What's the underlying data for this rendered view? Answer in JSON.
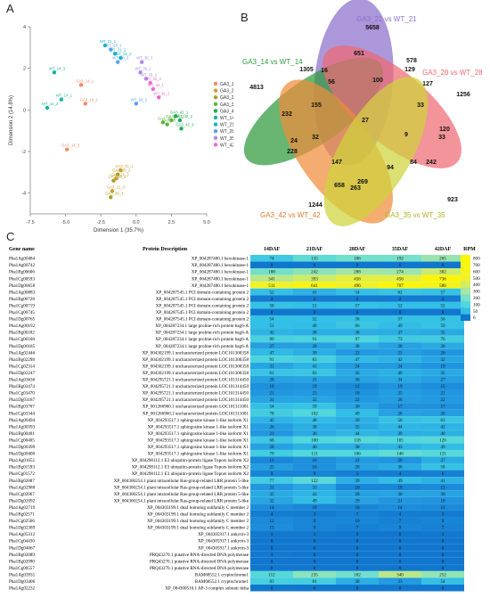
{
  "panels": {
    "a": "A",
    "b": "B",
    "c": "C"
  },
  "chart_data": [
    {
      "type": "scatter",
      "xlabel": "Dimension 1 (35.7%)",
      "ylabel": "Dimension 2 (14.8%)",
      "xlim": [
        -7.5,
        5.0
      ],
      "ylim": [
        -5,
        4
      ],
      "xticks": [
        "-7.5",
        "-5.0",
        "-2.5",
        "0.0",
        "2.5",
        "5.0"
      ],
      "yticks": [
        "4",
        "2",
        "0",
        "-2",
        "-4"
      ],
      "grid": false,
      "legend_position": "right",
      "series": [
        {
          "name": "GA3_14",
          "color": "#f08a6a",
          "points": [
            {
              "label": "GA3_14_1",
              "x": -3.9,
              "y": 1.2
            },
            {
              "label": "GA3_14_2",
              "x": -3.6,
              "y": 0.3
            },
            {
              "label": "GA3_14_3",
              "x": -4.9,
              "y": -1.9
            }
          ]
        },
        {
          "name": "GA3_21",
          "color": "#d49a2a",
          "points": [
            {
              "label": "GA3_21_1",
              "x": -1.1,
              "y": -2.9
            },
            {
              "label": "GA3_21_2",
              "x": -1.4,
              "y": -3.3
            },
            {
              "label": "GA3_21_3",
              "x": -1.7,
              "y": -3.9
            }
          ]
        },
        {
          "name": "GA3_28",
          "color": "#a6a126",
          "points": [
            {
              "label": "GA3_28_1",
              "x": -1.3,
              "y": -3.1
            },
            {
              "label": "GA3_28_2",
              "x": -1.6,
              "y": -3.4
            },
            {
              "label": "GA3_28_3",
              "x": -1.8,
              "y": -4.2
            }
          ]
        },
        {
          "name": "GA3_35",
          "color": "#5eb43a",
          "points": [
            {
              "label": "GA3_35_1",
              "x": 1.9,
              "y": -0.6
            },
            {
              "label": "GA3_35_2",
              "x": 2.2,
              "y": -0.7
            },
            {
              "label": "GA3_35_3",
              "x": 2.5,
              "y": -0.5
            }
          ]
        },
        {
          "name": "GA3_42",
          "color": "#1eaa5a",
          "points": [
            {
              "label": "GA3_42_1",
              "x": 2.8,
              "y": -0.3
            },
            {
              "label": "GA3_42_2",
              "x": 3.1,
              "y": -0.5
            },
            {
              "label": "GA3_42_3",
              "x": 3.2,
              "y": -0.9
            }
          ]
        },
        {
          "name": "WT_14",
          "color": "#16b3a0",
          "points": [
            {
              "label": "WT_14_1",
              "x": -5.3,
              "y": 0.5
            },
            {
              "label": "WT_14_2",
              "x": -6.3,
              "y": 0.1
            },
            {
              "label": "WT_14_3",
              "x": -5.8,
              "y": 1.8
            }
          ]
        },
        {
          "name": "WT_21",
          "color": "#16b0cc",
          "points": [
            {
              "label": "WT_21_1",
              "x": -2.2,
              "y": 3.1
            },
            {
              "label": "WT_21_2",
              "x": -1.5,
              "y": 2.7
            },
            {
              "label": "WT_21_3",
              "x": -1.1,
              "y": 2.5
            }
          ]
        },
        {
          "name": "WT_28",
          "color": "#5aa2ec",
          "points": [
            {
              "label": "WT_28_1",
              "x": -1.8,
              "y": 2.9
            },
            {
              "label": "WT_28_2",
              "x": -1.3,
              "y": 2.3
            },
            {
              "label": "WT_28_3",
              "x": 0.0,
              "y": 0.3
            }
          ]
        },
        {
          "name": "WT_35",
          "color": "#a98ae8",
          "points": [
            {
              "label": "WT_35_1",
              "x": 0.3,
              "y": 1.8
            },
            {
              "label": "WT_35_2",
              "x": 0.7,
              "y": 1.5
            },
            {
              "label": "WT_35_3",
              "x": 0.4,
              "y": 2.3
            }
          ]
        },
        {
          "name": "WT_42",
          "color": "#ee6ad0",
          "points": [
            {
              "label": "WT_42_1",
              "x": 1.2,
              "y": 1.0
            },
            {
              "label": "WT_42_2",
              "x": 1.6,
              "y": 0.6
            },
            {
              "label": "WT_42_3",
              "x": 1.0,
              "y": 1.3
            }
          ]
        }
      ]
    },
    {
      "type": "venn",
      "sets": [
        {
          "name": "GA3_21 vs WT_21",
          "color": "#8b6fcc",
          "unique": "5658"
        },
        {
          "name": "GA3_28 vs WT_28",
          "color": "#ee6a73",
          "unique": "1256"
        },
        {
          "name": "GA3_35 vs WT_35",
          "color": "#cfd23a",
          "unique": "923"
        },
        {
          "name": "GA3_42 vs WT_42",
          "color": "#f08c3a",
          "unique": "1244"
        },
        {
          "name": "GA3_14 vs WT_14",
          "color": "#2e9a3c",
          "unique": "4813"
        }
      ],
      "intersections": [
        "651",
        "578",
        "129",
        "100",
        "127",
        "1305",
        "56",
        "16",
        "33",
        "232",
        "155",
        "27",
        "9",
        "120",
        "33",
        "32",
        "84",
        "242",
        "24",
        "228",
        "147",
        "94",
        "658",
        "269",
        "263"
      ]
    },
    {
      "type": "heatmap",
      "columns": [
        "14DAF",
        "21DAF",
        "28DAF",
        "35DAF",
        "42DAF"
      ],
      "headers": {
        "gene": "Gene name",
        "desc": "Protein Description"
      },
      "legend": {
        "title": "RPM",
        "ticks": [
          "800",
          "700",
          "600",
          "500",
          "400",
          "300",
          "200",
          "100",
          "50",
          "0"
        ]
      },
      "rows": [
        {
          "gene": "Pha1Ag00484",
          "desc": "XP_004287480.1 hexokinase-1",
          "values": [
            74,
            135,
            186,
            192,
            265
          ]
        },
        {
          "gene": "Pha1Ag00742",
          "desc": "XP_004287480.1 hexokinase-1",
          "values": [
            0,
            0,
            0,
            0,
            0
          ]
        },
        {
          "gene": "Pha1Bg00606",
          "desc": "XP_004287480.1 hexokinase-1",
          "values": [
            188,
            242,
            288,
            274,
            382
          ]
        },
        {
          "gene": "Pha1Cg00593",
          "desc": "XP_004287480.1 hexokinase-1",
          "values": [
            341,
            393,
            456,
            456,
            736
          ]
        },
        {
          "gene": "Pha1Dg00658",
          "desc": "XP_004287480.1 hexokinase-1",
          "values": [
            511,
            641,
            496,
            707,
            586
          ]
        },
        {
          "gene": "Pha1Ag00883",
          "desc": "XP_004287545.1 PCI domain-containing protein 2",
          "values": [
            52,
            41,
            54,
            62,
            57
          ]
        },
        {
          "gene": "Pha1Bg00728",
          "desc": "XP_004287545.1 PCI domain-containing protein 2",
          "values": [
            2,
            2,
            2,
            2,
            2
          ]
        },
        {
          "gene": "Pha1Cg00719",
          "desc": "XP_004287545.1 PCI domain-containing protein 2",
          "values": [
            58,
            51,
            57,
            52,
            52
          ]
        },
        {
          "gene": "Pha1Cg00745",
          "desc": "XP_004287545.1 PCI domain-containing protein 2",
          "values": [
            0,
            0,
            0,
            0,
            0
          ]
        },
        {
          "gene": "Pha1Dg00765",
          "desc": "XP_004287545.1 PCI domain-containing protein 2",
          "values": [
            54,
            52,
            58,
            57,
            56
          ]
        },
        {
          "gene": "Pha1Ag00192",
          "desc": "XP_004287234.1 large proline-rich protein bag6-A",
          "values": [
            51,
            49,
            66,
            49,
            59
          ]
        },
        {
          "gene": "Pha1Bg00182",
          "desc": "XP_004287234.1 large proline-rich protein bag6-A",
          "values": [
            42,
            38,
            38,
            37,
            35
          ]
        },
        {
          "gene": "Pha1Cg00168",
          "desc": "XP_004287234.1 large proline-rich protein bag6-A",
          "values": [
            89,
            91,
            97,
            73,
            76
          ]
        },
        {
          "gene": "Pha1Dg00185",
          "desc": "XP_004287234.1 large proline-rich protein bag6-A",
          "values": [
            27,
            29,
            38,
            28,
            36
          ]
        },
        {
          "gene": "Pha1Ag02446",
          "desc": "XP_004302199.1 uncharacterized protein LOC101300358",
          "values": [
            47,
            39,
            22,
            25,
            20
          ]
        },
        {
          "gene": "Pha1Bg02298",
          "desc": "XP_004302199.1 uncharacterized protein LOC101300358",
          "values": [
            91,
            83,
            47,
            42,
            32
          ]
        },
        {
          "gene": "Pha1Cg02314",
          "desc": "XP_004302199.1 uncharacterized protein LOC101300358",
          "values": [
            31,
            41,
            24,
            24,
            19
          ]
        },
        {
          "gene": "Pha1Dg02247",
          "desc": "XP_004302199.1 uncharacterized protein LOC101300358",
          "values": [
            61,
            63,
            35,
            40,
            35
          ]
        },
        {
          "gene": "Pha1Ag03636",
          "desc": "XP_004295721.1 uncharacterized protein LOC101314450",
          "values": [
            28,
            31,
            30,
            34,
            27
          ]
        },
        {
          "gene": "Pha1Bg03474",
          "desc": "XP_004295721.1 uncharacterized protein LOC101314450",
          "values": [
            16,
            19,
            12,
            19,
            15
          ]
        },
        {
          "gene": "Pha1Cg03470",
          "desc": "XP_004295721.1 uncharacterized protein LOC101314450",
          "values": [
            21,
            23,
            18,
            25,
            21
          ]
        },
        {
          "gene": "Pha1Dg03187",
          "desc": "XP_004295721.1 uncharacterized protein LOC101314450",
          "values": [
            31,
            32,
            22,
            26,
            22
          ]
        },
        {
          "gene": "Pha1Bg03707",
          "desc": "XP_001266960.1 uncharacterized protein LOC101311001",
          "values": [
            54,
            59,
            30,
            17,
            17
          ]
        },
        {
          "gene": "Pha1Cg03344",
          "desc": "XP_001266960.1 uncharacterized protein LOC101311001",
          "values": [
            78,
            102,
            49,
            28,
            26
          ]
        },
        {
          "gene": "Pha1Ag00494",
          "desc": "XP_004293517.1 sphingosine kinase 1-like isoform X1",
          "values": [
            42,
            48,
            39,
            56,
            63
          ]
        },
        {
          "gene": "Pha1Ag00393",
          "desc": "XP_004293517.1 sphingosine kinase 1-like isoform X1",
          "values": [
            26,
            38,
            35,
            44,
            42
          ]
        },
        {
          "gene": "Pha1Bg00401",
          "desc": "XP_004293517.1 sphingosine kinase 1-like isoform X1",
          "values": [
            21,
            36,
            44,
            39,
            40
          ]
        },
        {
          "gene": "Pha1Cg00405",
          "desc": "XP_004293517.1 sphingosine kinase 1-like isoform X1",
          "values": [
            68,
            100,
            118,
            105,
            120
          ]
        },
        {
          "gene": "Pha1Dg00399",
          "desc": "XP_004293517.1 sphingosine kinase 1-like isoform X1",
          "values": [
            28,
            40,
            38,
            43,
            49
          ]
        },
        {
          "gene": "Pha1Dg00400",
          "desc": "XP_004293517.1 sphingosine kinase 1-like isoform X1",
          "values": [
            79,
            111,
            106,
            146,
            121
          ]
        },
        {
          "gene": "Pha1Ag01651",
          "desc": "XP_004298112.1 E3 ubiquitin-protein ligase Topors isoform X2",
          "values": [
            11,
            16,
            22,
            20,
            37
          ]
        },
        {
          "gene": "Pha1Bg01593",
          "desc": "XP_004298112.1 E3 ubiquitin-protein ligase Topors isoform X2",
          "values": [
            25,
            16,
            28,
            36,
            58
          ]
        },
        {
          "gene": "Pha1Cg01572",
          "desc": "XP_004298112.1 E3 ubiquitin-protein ligase Topors isoform X2",
          "values": [
            9,
            9,
            5,
            4,
            6
          ]
        },
        {
          "gene": "Pha1Bg02887",
          "desc": "XP_004300254.1 plant intracellular Ras-group-related LRR protein 5-like",
          "values": [
            77,
            122,
            39,
            49,
            41
          ]
        },
        {
          "gene": "Pha1Ag02988",
          "desc": "XP_004300254.1 plant intracellular Ras-group-related LRR protein 5-like",
          "values": [
            21,
            33,
            10,
            10,
            13
          ]
        },
        {
          "gene": "Pha1Cg02067",
          "desc": "XP_004300254.1 plant intracellular Ras-group-related LRR protein 5-like",
          "values": [
            35,
            43,
            28,
            30,
            30
          ]
        },
        {
          "gene": "Pha1Dg02092",
          "desc": "XP_004300254.1 plant intracellular Ras-group-related LRR protein 5-like",
          "values": [
            32,
            49,
            29,
            21,
            19
          ]
        },
        {
          "gene": "Pha1Ag02719",
          "desc": "XP_004303199.1 dnaJ homolog subfamily C member 2",
          "values": [
            14,
            10,
            10,
            14,
            12
          ]
        },
        {
          "gene": "Pha1Bg02571",
          "desc": "XP_004303199.1 dnaJ homolog subfamily C member 2",
          "values": [
            4,
            3,
            7,
            4,
            3
          ]
        },
        {
          "gene": "Pha1Cg02566",
          "desc": "XP_004303199.1 dnaJ homolog subfamily C member 2",
          "values": [
            12,
            9,
            10,
            7,
            9
          ]
        },
        {
          "gene": "Pha1Dg02389",
          "desc": "XP_004303199.1 dnaJ homolog subfamily C member 2",
          "values": [
            15,
            9,
            7,
            9,
            7
          ]
        },
        {
          "gene": "Pha1Ag05312",
          "desc": "XP_004305917.1 ankyrin-3",
          "values": [
            1,
            1,
            0,
            0,
            1
          ]
        },
        {
          "gene": "Pha1Cg04430",
          "desc": "XP_004305917.1 ankyrin-3",
          "values": [
            0,
            0,
            0,
            0,
            0
          ]
        },
        {
          "gene": "Pha1Dg04667",
          "desc": "XP_004305917.1 ankyrin-3",
          "values": [
            0,
            0,
            0,
            0,
            0
          ]
        },
        {
          "gene": "Pha1Bg02089",
          "desc": "PRQ43270.1 putative RNA-directed DNA polymerase",
          "values": [
            1,
            0,
            0,
            0,
            0
          ]
        },
        {
          "gene": "Pha1Bg02090",
          "desc": "PRQ43270.1 putative RNA-directed DNA polymerase",
          "values": [
            0,
            0,
            0,
            0,
            0
          ]
        },
        {
          "gene": "Pha1Cg00557",
          "desc": "PRQ43270.1 putative RNA-directed DNA polymerase",
          "values": [
            0,
            0,
            0,
            0,
            0
          ]
        },
        {
          "gene": "Pha1Ag03931",
          "desc": "BAM68552.1 cryptochrome1",
          "values": [
            112,
            235,
            182,
            340,
            252
          ]
        },
        {
          "gene": "Pha1Dg03406",
          "desc": "BAM68552.1 cryptochrome1",
          "values": [
            83,
            81,
            38,
            23,
            54
          ]
        },
        {
          "gene": "Pha1Ag02232",
          "desc": "XP_004300510.1 AP-3 complex subunit delta",
          "values": [
            0,
            0,
            0,
            0,
            0
          ]
        }
      ]
    }
  ]
}
